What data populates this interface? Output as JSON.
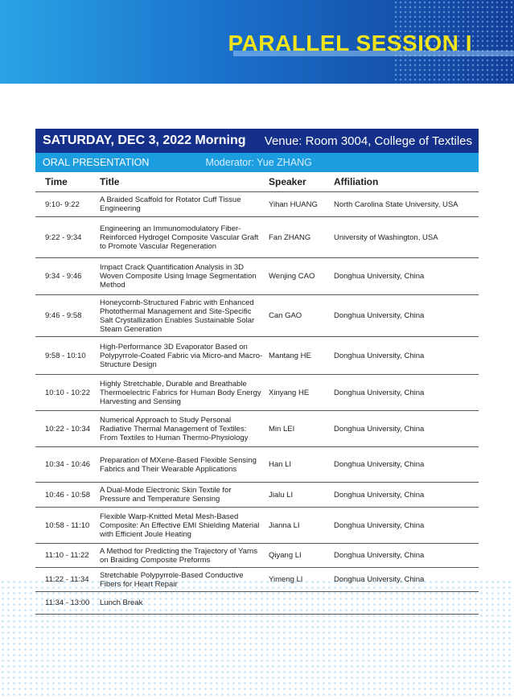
{
  "banner": {
    "title": "PARALLEL SESSION I"
  },
  "session": {
    "date": "SATURDAY, DEC 3, 2022  Morning",
    "venue": "Venue: Room 3004, College of Textiles",
    "type": "ORAL PRESENTATION",
    "moderator": "Moderator: Yue ZHANG"
  },
  "columns": [
    "Time",
    "Title",
    "Speaker",
    "Affiliation"
  ],
  "rows": [
    {
      "time": "9:10- 9:22",
      "title": "A Braided Scaffold for Rotator Cuff Tissue Engineering",
      "speaker": "Yihan HUANG",
      "affiliation": "North Carolina State University, USA"
    },
    {
      "time": "9:22 - 9:34",
      "title": "Engineering an Immunomodulatory Fiber-Reinforced Hydrogel Composite Vascular Graft to Promote Vascular Regeneration",
      "speaker": "Fan ZHANG",
      "affiliation": "University of Washington, USA"
    },
    {
      "time": "9:34 - 9:46",
      "title": "Impact Crack Quantification Analysis in 3D Woven Composite Using Image Segmentation Method",
      "speaker": "Wenjing CAO",
      "affiliation": "Donghua University, China"
    },
    {
      "time": "9:46 - 9:58",
      "title": "Honeycomb-Structured Fabric with Enhanced Photothermal Management and Site-Specific Salt Crystallization Enables Sustainable Solar Steam Generation",
      "speaker": "Can GAO",
      "affiliation": "Donghua University, China"
    },
    {
      "time": "9:58 - 10:10",
      "title": "High-Performance 3D Evaporator Based on Polypyrrole-Coated Fabric via Micro-and Macro-Structure Design",
      "speaker": "Mantang HE",
      "affiliation": "Donghua University, China"
    },
    {
      "time": "10:10 - 10:22",
      "title": "Highly Stretchable, Durable and Breathable Thermoelectric Fabrics for Human Body Energy Harvesting and Sensing",
      "speaker": "Xinyang HE",
      "affiliation": "Donghua University, China"
    },
    {
      "time": "10:22 - 10:34",
      "title": "Numerical Approach to Study Personal Radiative Thermal Management of Textiles: From Textiles to Human Thermo-Physiology",
      "speaker": "Min LEI",
      "affiliation": "Donghua University, China"
    },
    {
      "time": "10:34 - 10:46",
      "title": "Preparation of MXene-Based Flexible Sensing Fabrics and Their Wearable Applications",
      "speaker": "Han LI",
      "affiliation": "Donghua University, China"
    },
    {
      "time": "10:46 - 10:58",
      "title": "A Dual-Mode Electronic Skin Textile for Pressure and Temperature Sensing",
      "speaker": "Jialu LI",
      "affiliation": "Donghua University, China"
    },
    {
      "time": "10:58 - 11:10",
      "title": "Flexible Warp-Knitted Metal Mesh-Based Composite: An Effective EMI Shielding Material with Efficient Joule Heating",
      "speaker": "Jianna LI",
      "affiliation": "Donghua University, China"
    },
    {
      "time": "11:10 - 11:22",
      "title": "A Method for Predicting the Trajectory of Yarns on Braiding Composite Preforms",
      "speaker": "Qiyang LI",
      "affiliation": "Donghua University, China"
    },
    {
      "time": "11:22 - 11:34",
      "title": "Stretchable Polypyrrole-Based Conductive Fibers for Heart Repair",
      "speaker": "Yimeng LI",
      "affiliation": "Donghua University, China"
    },
    {
      "time": "11:34 - 13:00",
      "title": "Lunch Break",
      "speaker": "",
      "affiliation": ""
    }
  ]
}
